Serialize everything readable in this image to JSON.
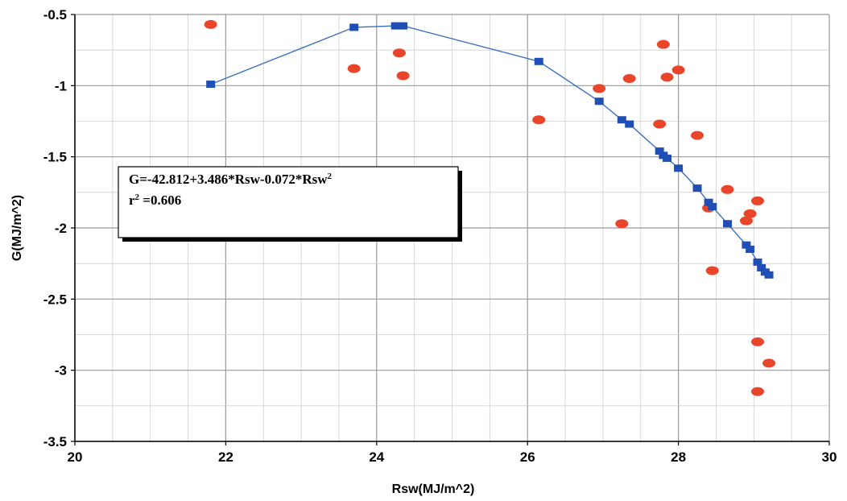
{
  "chart_data": {
    "type": "scatter",
    "xlabel": "Rsw(MJ/m^2)",
    "ylabel": "G(MJ/m^2)",
    "xlim": [
      20,
      30
    ],
    "ylim": [
      -3.5,
      -0.5
    ],
    "x_ticks": [
      20,
      22,
      24,
      26,
      28,
      30
    ],
    "y_ticks": [
      -0.5,
      -1,
      -1.5,
      -2,
      -2.5,
      -3,
      -3.5
    ],
    "x_minor_step": 0.5,
    "y_minor_step": 0.25,
    "grid": true,
    "series": [
      {
        "marker": "ellipse",
        "color": "#e8452a",
        "points": [
          [
            21.8,
            -0.57
          ],
          [
            23.7,
            -0.88
          ],
          [
            24.3,
            -0.77
          ],
          [
            24.35,
            -0.93
          ],
          [
            26.15,
            -1.24
          ],
          [
            26.95,
            -1.02
          ],
          [
            27.25,
            -1.97
          ],
          [
            27.35,
            -0.95
          ],
          [
            27.75,
            -1.27
          ],
          [
            27.8,
            -0.71
          ],
          [
            27.85,
            -0.94
          ],
          [
            28.0,
            -0.89
          ],
          [
            28.25,
            -1.35
          ],
          [
            28.4,
            -1.86
          ],
          [
            28.45,
            -2.3
          ],
          [
            28.65,
            -1.73
          ],
          [
            28.9,
            -1.95
          ],
          [
            28.95,
            -1.9
          ],
          [
            29.05,
            -1.81
          ],
          [
            29.05,
            -2.8
          ],
          [
            29.05,
            -3.15
          ],
          [
            29.2,
            -2.95
          ]
        ]
      },
      {
        "marker": "square",
        "color": "#1f4fb5",
        "line_color": "#3a6fbe",
        "connected": true,
        "points": [
          [
            21.8,
            -0.99
          ],
          [
            23.7,
            -0.59
          ],
          [
            24.25,
            -0.58
          ],
          [
            24.35,
            -0.58
          ],
          [
            26.15,
            -0.83
          ],
          [
            26.95,
            -1.11
          ],
          [
            27.25,
            -1.24
          ],
          [
            27.35,
            -1.27
          ],
          [
            27.75,
            -1.46
          ],
          [
            27.8,
            -1.49
          ],
          [
            27.85,
            -1.51
          ],
          [
            28.0,
            -1.58
          ],
          [
            28.25,
            -1.72
          ],
          [
            28.4,
            -1.82
          ],
          [
            28.45,
            -1.85
          ],
          [
            28.65,
            -1.97
          ],
          [
            28.9,
            -2.12
          ],
          [
            28.95,
            -2.15
          ],
          [
            29.05,
            -2.24
          ],
          [
            29.1,
            -2.28
          ],
          [
            29.15,
            -2.31
          ],
          [
            29.2,
            -2.33
          ]
        ]
      }
    ],
    "annotation": {
      "line1_main": "G=-42.812+3.486*Rsw-0.072*Rsw",
      "line1_sup": "2",
      "line2_main": "r",
      "line2_sup": "2",
      "line2_rest": " =0.606"
    }
  }
}
